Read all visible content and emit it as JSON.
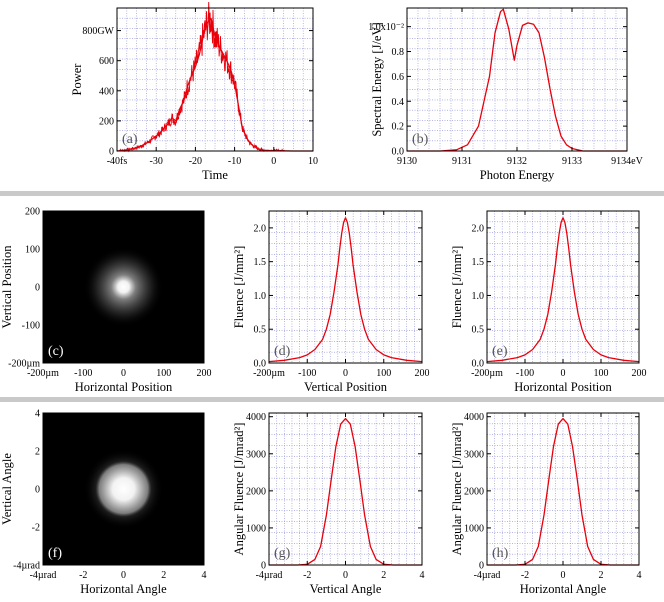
{
  "separator_color": "#c9c9c9",
  "line_color": "#e8000b",
  "grid_color": "#8a8ad8",
  "chart_data": [
    {
      "id": "a",
      "type": "line",
      "panel_label": "(a)",
      "xlabel": "Time",
      "ylabel": "Power",
      "xlim": [
        -40,
        10
      ],
      "ylim": [
        0,
        950
      ],
      "xticks": [
        -40,
        -30,
        -20,
        -10,
        0,
        10
      ],
      "xtick_labels": [
        "-40fs",
        "-30",
        "-20",
        "-10",
        "0",
        "10"
      ],
      "yticks": [
        0,
        200,
        400,
        600,
        800
      ],
      "ytick_labels": [
        "0",
        "200",
        "400",
        "600",
        "800GW"
      ],
      "x": [
        -40,
        -38,
        -36,
        -34,
        -32,
        -30,
        -29,
        -28,
        -27,
        -26,
        -25,
        -24,
        -23,
        -22,
        -21,
        -20,
        -19,
        -18,
        -17,
        -16,
        -15,
        -14,
        -13,
        -12,
        -11,
        -10,
        -9,
        -8,
        -7,
        -6,
        -5,
        -4,
        -3,
        -2,
        0,
        5,
        10
      ],
      "y": [
        0,
        5,
        15,
        30,
        60,
        100,
        120,
        150,
        180,
        220,
        200,
        280,
        330,
        430,
        500,
        560,
        640,
        760,
        850,
        880,
        760,
        700,
        650,
        600,
        540,
        450,
        300,
        150,
        90,
        50,
        30,
        15,
        8,
        4,
        2,
        0,
        0
      ]
    },
    {
      "id": "b",
      "type": "line",
      "panel_label": "(b)",
      "xlabel": "Photon Energy",
      "ylabel": "Spectral Energy [J/eV]",
      "xlim": [
        9130,
        9134
      ],
      "ylim": [
        0,
        0.0115
      ],
      "xticks": [
        9130,
        9131,
        9132,
        9133,
        9134
      ],
      "xtick_labels": [
        "9130",
        "9131",
        "9132",
        "9133",
        "9134eV"
      ],
      "yticks": [
        0,
        0.002,
        0.004,
        0.006,
        0.008,
        0.01
      ],
      "ytick_labels": [
        "0.0",
        "0.2",
        "0.4",
        "0.6",
        "0.8",
        "1.0x10⁻²"
      ],
      "x": [
        9130,
        9130.6,
        9130.9,
        9131.1,
        9131.3,
        9131.5,
        9131.6,
        9131.7,
        9131.75,
        9131.85,
        9131.95,
        9132.0,
        9132.1,
        9132.2,
        9132.3,
        9132.4,
        9132.5,
        9132.6,
        9132.7,
        9132.8,
        9132.9,
        9133.0,
        9133.2,
        9133.5,
        9134
      ],
      "y": [
        0,
        0,
        0.0001,
        0.0005,
        0.002,
        0.006,
        0.0095,
        0.0112,
        0.0114,
        0.0098,
        0.0073,
        0.0085,
        0.0101,
        0.0103,
        0.0102,
        0.0095,
        0.0075,
        0.005,
        0.0028,
        0.0012,
        0.0005,
        0.0002,
        0,
        0,
        0
      ]
    },
    {
      "id": "c",
      "type": "heatmap",
      "panel_label": "(c)",
      "xlabel": "Horizontal Position",
      "ylabel": "Vertical Position",
      "xlim": [
        -200,
        200
      ],
      "ylim": [
        -200,
        200
      ],
      "xticks": [
        -200,
        -100,
        0,
        100,
        200
      ],
      "xtick_labels": [
        "-200µm",
        "-100",
        "0",
        "100",
        "200"
      ],
      "yticks": [
        -200,
        -100,
        0,
        100,
        200
      ],
      "ytick_labels": [
        "-200µm",
        "-100",
        "0",
        "100",
        "200"
      ],
      "spot_center": [
        0,
        0
      ],
      "spot_sigma": 14,
      "halo_sigma": 45
    },
    {
      "id": "d",
      "type": "line",
      "panel_label": "(d)",
      "xlabel": "Vertical Position",
      "ylabel": "Fluence [J/mm²]",
      "xlim": [
        -200,
        200
      ],
      "ylim": [
        0,
        2.25
      ],
      "xticks": [
        -200,
        -100,
        0,
        100,
        200
      ],
      "xtick_labels": [
        "-200µm",
        "-100",
        "0",
        "100",
        "200"
      ],
      "yticks": [
        0,
        0.5,
        1.0,
        1.5,
        2.0
      ],
      "ytick_labels": [
        "0.0",
        "0.5",
        "1.0",
        "1.5",
        "2.0"
      ],
      "x": [
        -200,
        -160,
        -120,
        -100,
        -80,
        -60,
        -50,
        -40,
        -30,
        -20,
        -15,
        -10,
        -5,
        0,
        5,
        10,
        15,
        20,
        30,
        40,
        50,
        60,
        80,
        100,
        120,
        160,
        200
      ],
      "y": [
        0.02,
        0.04,
        0.08,
        0.12,
        0.2,
        0.35,
        0.5,
        0.72,
        1.05,
        1.45,
        1.7,
        1.92,
        2.08,
        2.15,
        2.08,
        1.92,
        1.7,
        1.45,
        1.05,
        0.72,
        0.5,
        0.35,
        0.2,
        0.12,
        0.08,
        0.04,
        0.02
      ]
    },
    {
      "id": "e",
      "type": "line",
      "panel_label": "(e)",
      "xlabel": "Horizontal Position",
      "ylabel": "Fluence [J/mm²]",
      "xlim": [
        -200,
        200
      ],
      "ylim": [
        0,
        2.25
      ],
      "xticks": [
        -200,
        -100,
        0,
        100,
        200
      ],
      "xtick_labels": [
        "-200µm",
        "-100",
        "0",
        "100",
        "200"
      ],
      "yticks": [
        0,
        0.5,
        1.0,
        1.5,
        2.0
      ],
      "ytick_labels": [
        "0.0",
        "0.5",
        "1.0",
        "1.5",
        "2.0"
      ],
      "x": [
        -200,
        -160,
        -120,
        -100,
        -80,
        -60,
        -50,
        -40,
        -30,
        -20,
        -15,
        -10,
        -5,
        0,
        5,
        10,
        15,
        20,
        30,
        40,
        50,
        60,
        80,
        100,
        120,
        160,
        200
      ],
      "y": [
        0.02,
        0.04,
        0.08,
        0.12,
        0.2,
        0.35,
        0.5,
        0.72,
        1.05,
        1.45,
        1.7,
        1.92,
        2.08,
        2.15,
        2.08,
        1.92,
        1.7,
        1.45,
        1.05,
        0.72,
        0.5,
        0.35,
        0.2,
        0.12,
        0.08,
        0.04,
        0.02
      ]
    },
    {
      "id": "f",
      "type": "heatmap",
      "panel_label": "(f)",
      "xlabel": "Horizontal Angle",
      "ylabel": "Vertical Angle",
      "xlim": [
        -4,
        4
      ],
      "ylim": [
        -4,
        4
      ],
      "xticks": [
        -4,
        -2,
        0,
        2,
        4
      ],
      "xtick_labels": [
        "-4µrad",
        "-2",
        "0",
        "2",
        "4"
      ],
      "yticks": [
        -4,
        -2,
        0,
        2,
        4
      ],
      "ytick_labels": [
        "-4µrad",
        "-2",
        "0",
        "2",
        "4"
      ],
      "spot_center": [
        0,
        0
      ],
      "spot_sigma": 0.55,
      "halo_sigma": 0.9
    },
    {
      "id": "g",
      "type": "line",
      "panel_label": "(g)",
      "xlabel": "Vertical Angle",
      "ylabel": "Angular Fluence [J/mrad²]",
      "xlim": [
        -4,
        4
      ],
      "ylim": [
        0,
        4100
      ],
      "xticks": [
        -4,
        -2,
        0,
        2,
        4
      ],
      "xtick_labels": [
        "-4µrad",
        "-2",
        "0",
        "2",
        "4"
      ],
      "yticks": [
        0,
        1000,
        2000,
        3000,
        4000
      ],
      "ytick_labels": [
        "0",
        "1000",
        "2000",
        "3000",
        "4000"
      ],
      "x": [
        -4,
        -2.5,
        -2,
        -1.6,
        -1.3,
        -1,
        -0.75,
        -0.5,
        -0.25,
        0,
        0.25,
        0.5,
        0.75,
        1,
        1.3,
        1.6,
        2,
        2.5,
        4
      ],
      "y": [
        0,
        0,
        20,
        150,
        500,
        1350,
        2300,
        3200,
        3800,
        3950,
        3800,
        3200,
        2300,
        1350,
        500,
        150,
        20,
        0,
        0
      ]
    },
    {
      "id": "h",
      "type": "line",
      "panel_label": "(h)",
      "xlabel": "Horizontal Angle",
      "ylabel": "Angular Fluence [J/mrad²]",
      "xlim": [
        -4,
        4
      ],
      "ylim": [
        0,
        4100
      ],
      "xticks": [
        -4,
        -2,
        0,
        2,
        4
      ],
      "xtick_labels": [
        "-4µrad",
        "-2",
        "0",
        "2",
        "4"
      ],
      "yticks": [
        0,
        1000,
        2000,
        3000,
        4000
      ],
      "ytick_labels": [
        "0",
        "1000",
        "2000",
        "3000",
        "4000"
      ],
      "x": [
        -4,
        -2.5,
        -2,
        -1.6,
        -1.3,
        -1,
        -0.75,
        -0.5,
        -0.25,
        0,
        0.25,
        0.5,
        0.75,
        1,
        1.3,
        1.6,
        2,
        2.5,
        4
      ],
      "y": [
        0,
        0,
        20,
        150,
        500,
        1350,
        2300,
        3200,
        3800,
        3950,
        3800,
        3200,
        2300,
        1350,
        500,
        150,
        20,
        0,
        0
      ]
    }
  ]
}
